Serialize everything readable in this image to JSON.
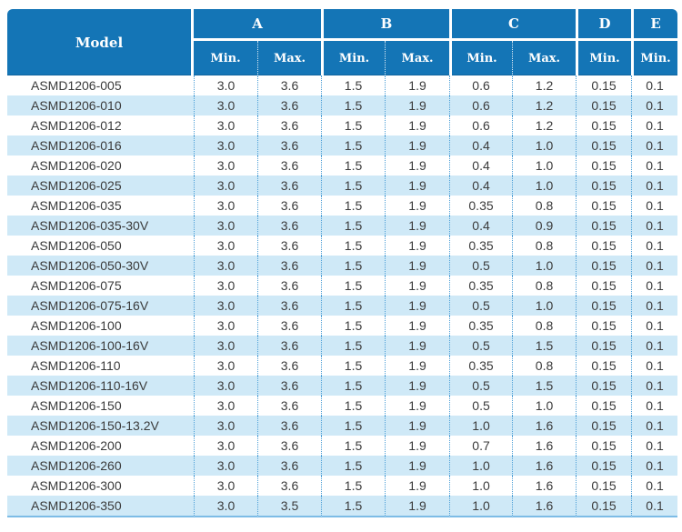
{
  "colors": {
    "header_bg": "#1475b6",
    "row_alt_bg": "#cfe9f7",
    "dotted_line": "#4d9fd6",
    "bottom_border": "#7dbce6",
    "body_text": "#3b3b3b",
    "header_text": "#ffffff"
  },
  "table": {
    "model_header": "Model",
    "groups": [
      {
        "label": "A",
        "subs": [
          "Min.",
          "Max."
        ]
      },
      {
        "label": "B",
        "subs": [
          "Min.",
          "Max."
        ]
      },
      {
        "label": "C",
        "subs": [
          "Min.",
          "Max."
        ]
      },
      {
        "label": "D",
        "subs": [
          "Min."
        ]
      },
      {
        "label": "E",
        "subs": [
          "Min."
        ]
      }
    ],
    "rows": [
      {
        "model": "ASMD1206-005",
        "values": [
          "3.0",
          "3.6",
          "1.5",
          "1.9",
          "0.6",
          "1.2",
          "0.15",
          "0.1"
        ]
      },
      {
        "model": "ASMD1206-010",
        "values": [
          "3.0",
          "3.6",
          "1.5",
          "1.9",
          "0.6",
          "1.2",
          "0.15",
          "0.1"
        ]
      },
      {
        "model": "ASMD1206-012",
        "values": [
          "3.0",
          "3.6",
          "1.5",
          "1.9",
          "0.6",
          "1.2",
          "0.15",
          "0.1"
        ]
      },
      {
        "model": "ASMD1206-016",
        "values": [
          "3.0",
          "3.6",
          "1.5",
          "1.9",
          "0.4",
          "1.0",
          "0.15",
          "0.1"
        ]
      },
      {
        "model": "ASMD1206-020",
        "values": [
          "3.0",
          "3.6",
          "1.5",
          "1.9",
          "0.4",
          "1.0",
          "0.15",
          "0.1"
        ]
      },
      {
        "model": "ASMD1206-025",
        "values": [
          "3.0",
          "3.6",
          "1.5",
          "1.9",
          "0.4",
          "1.0",
          "0.15",
          "0.1"
        ]
      },
      {
        "model": "ASMD1206-035",
        "values": [
          "3.0",
          "3.6",
          "1.5",
          "1.9",
          "0.35",
          "0.8",
          "0.15",
          "0.1"
        ]
      },
      {
        "model": "ASMD1206-035-30V",
        "values": [
          "3.0",
          "3.6",
          "1.5",
          "1.9",
          "0.4",
          "0.9",
          "0.15",
          "0.1"
        ]
      },
      {
        "model": "ASMD1206-050",
        "values": [
          "3.0",
          "3.6",
          "1.5",
          "1.9",
          "0.35",
          "0.8",
          "0.15",
          "0.1"
        ]
      },
      {
        "model": "ASMD1206-050-30V",
        "values": [
          "3.0",
          "3.6",
          "1.5",
          "1.9",
          "0.5",
          "1.0",
          "0.15",
          "0.1"
        ]
      },
      {
        "model": "ASMD1206-075",
        "values": [
          "3.0",
          "3.6",
          "1.5",
          "1.9",
          "0.35",
          "0.8",
          "0.15",
          "0.1"
        ]
      },
      {
        "model": "ASMD1206-075-16V",
        "values": [
          "3.0",
          "3.6",
          "1.5",
          "1.9",
          "0.5",
          "1.0",
          "0.15",
          "0.1"
        ]
      },
      {
        "model": "ASMD1206-100",
        "values": [
          "3.0",
          "3.6",
          "1.5",
          "1.9",
          "0.35",
          "0.8",
          "0.15",
          "0.1"
        ]
      },
      {
        "model": "ASMD1206-100-16V",
        "values": [
          "3.0",
          "3.6",
          "1.5",
          "1.9",
          "0.5",
          "1.5",
          "0.15",
          "0.1"
        ]
      },
      {
        "model": "ASMD1206-110",
        "values": [
          "3.0",
          "3.6",
          "1.5",
          "1.9",
          "0.35",
          "0.8",
          "0.15",
          "0.1"
        ]
      },
      {
        "model": "ASMD1206-110-16V",
        "values": [
          "3.0",
          "3.6",
          "1.5",
          "1.9",
          "0.5",
          "1.5",
          "0.15",
          "0.1"
        ]
      },
      {
        "model": "ASMD1206-150",
        "values": [
          "3.0",
          "3.6",
          "1.5",
          "1.9",
          "0.5",
          "1.0",
          "0.15",
          "0.1"
        ]
      },
      {
        "model": "ASMD1206-150-13.2V",
        "values": [
          "3.0",
          "3.6",
          "1.5",
          "1.9",
          "1.0",
          "1.6",
          "0.15",
          "0.1"
        ]
      },
      {
        "model": "ASMD1206-200",
        "values": [
          "3.0",
          "3.6",
          "1.5",
          "1.9",
          "0.7",
          "1.6",
          "0.15",
          "0.1"
        ]
      },
      {
        "model": "ASMD1206-260",
        "values": [
          "3.0",
          "3.6",
          "1.5",
          "1.9",
          "1.0",
          "1.6",
          "0.15",
          "0.1"
        ]
      },
      {
        "model": "ASMD1206-300",
        "values": [
          "3.0",
          "3.6",
          "1.5",
          "1.9",
          "1.0",
          "1.6",
          "0.15",
          "0.1"
        ]
      },
      {
        "model": "ASMD1206-350",
        "values": [
          "3.0",
          "3.5",
          "1.5",
          "1.9",
          "1.0",
          "1.6",
          "0.15",
          "0.1"
        ]
      }
    ]
  }
}
